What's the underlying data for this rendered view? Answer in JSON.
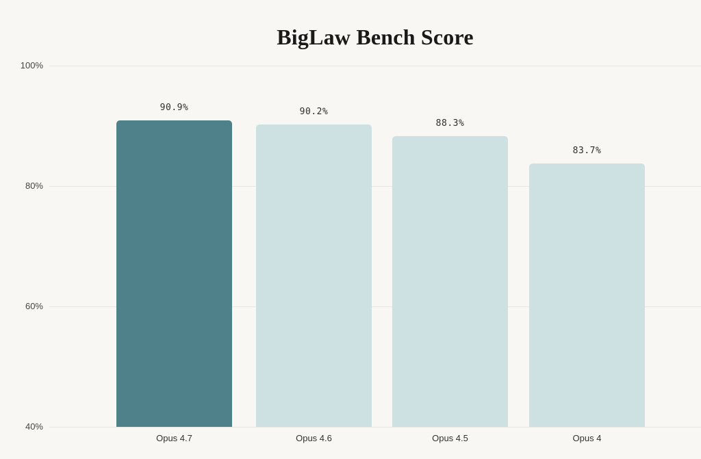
{
  "title": "BigLaw Bench Score",
  "chart_data": {
    "type": "bar",
    "title": "BigLaw Bench Score",
    "categories": [
      "Opus 4.7",
      "Opus 4.6",
      "Opus 4.5",
      "Opus 4"
    ],
    "values": [
      90.9,
      90.2,
      88.3,
      83.7
    ],
    "value_labels": [
      "90.9%",
      "90.2%",
      "88.3%",
      "83.7%"
    ],
    "xlabel": "",
    "ylabel": "",
    "ylim": [
      40,
      100
    ],
    "yticks": [
      {
        "value": 100,
        "label": "100%"
      },
      {
        "value": 80,
        "label": "80%"
      },
      {
        "value": 60,
        "label": "60%"
      },
      {
        "value": 40,
        "label": "40%"
      }
    ],
    "grid": "horizontal",
    "legend": "none",
    "highlight_index": 0,
    "colors": {
      "background": "#F8F7F4",
      "highlight_bar": "#4F818A",
      "default_bar": "#CDE0E2",
      "gridline": "#E9E6E2",
      "title_text": "#1B1A18",
      "axis_tick_text": "#454440",
      "category_text": "#33322E",
      "value_text": "#2E2D2A"
    }
  }
}
